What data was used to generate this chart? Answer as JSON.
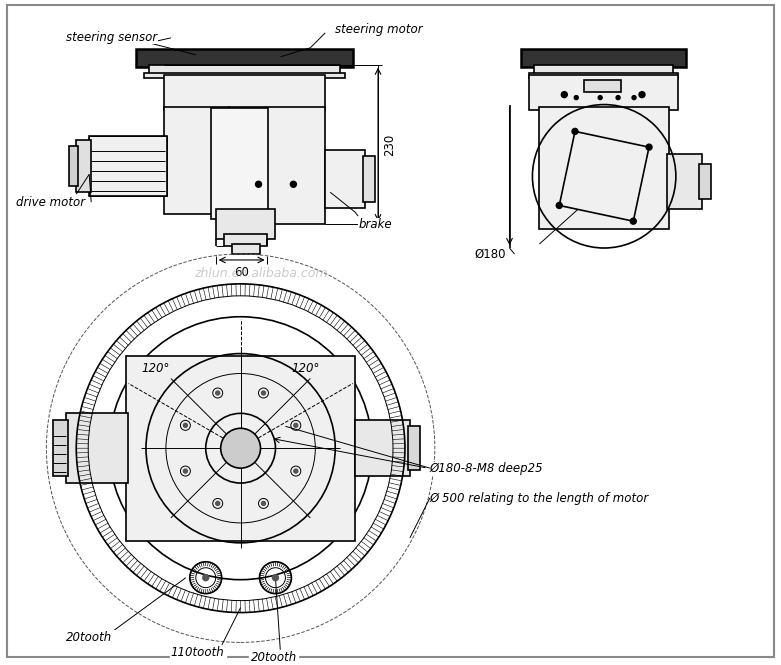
{
  "bg_color": "#ffffff",
  "line_color": "#000000",
  "watermark": "zhlun.en.alibaba.com",
  "watermark_color": "#aaaaaa",
  "labels": {
    "steering_sensor": "steering sensor",
    "steering_motor": "steering motor",
    "drive_motor": "drive motor",
    "brake": "brake",
    "dim_230": "230",
    "dim_60": "60",
    "dim_phi180": "Ø180",
    "dim_phi180_detail": "Ø180-8-M8 deep25",
    "dim_phi500": "Ø 500 relating to the length of motor",
    "tooth_20_left": "20tooth",
    "tooth_110": "110tooth",
    "tooth_20_right": "20tooth",
    "angle_120_left": "120°",
    "angle_120_right": "120°"
  },
  "font_size": 8.5,
  "title_font_size": 9
}
